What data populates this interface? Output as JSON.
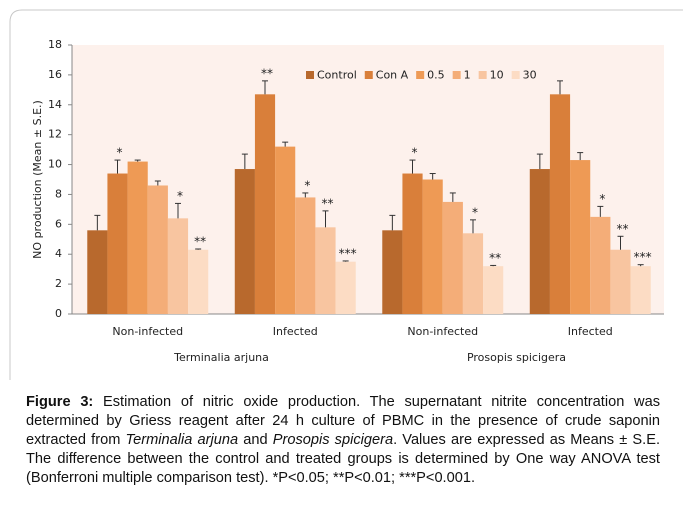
{
  "chart_data": {
    "type": "bar",
    "ylabel": "NO production  (Mean ± S.E.)",
    "categories": [
      "Non-infected",
      "Infected",
      "Non-infected",
      "Infected"
    ],
    "category_groups": [
      {
        "name": "Terminalia arjuna",
        "span": [
          0,
          1
        ]
      },
      {
        "name": "Prosopis spicigera",
        "span": [
          2,
          3
        ]
      }
    ],
    "ylim": [
      0,
      18
    ],
    "yticks": [
      0,
      2,
      4,
      6,
      8,
      10,
      12,
      14,
      16,
      18
    ],
    "grid": false,
    "legend": "top-right",
    "background": "#fdf1ec",
    "series": [
      {
        "name": "Control",
        "color": "#b8692d",
        "values": [
          5.6,
          9.7,
          5.6,
          9.7
        ],
        "errors": [
          1.0,
          1.0,
          1.0,
          1.0
        ],
        "labels": [
          null,
          null,
          null,
          null
        ]
      },
      {
        "name": "Con A",
        "color": "#d97f3a",
        "values": [
          9.4,
          14.7,
          9.4,
          14.7
        ],
        "errors": [
          0.9,
          0.9,
          0.9,
          0.9
        ],
        "labels": [
          "*",
          "**",
          "*",
          null
        ]
      },
      {
        "name": "0.5",
        "color": "#ee9a55",
        "values": [
          10.2,
          11.2,
          9.0,
          10.3
        ],
        "errors": [
          0.1,
          0.3,
          0.4,
          0.5
        ],
        "labels": [
          null,
          null,
          null,
          null
        ]
      },
      {
        "name": "1",
        "color": "#f4ad78",
        "values": [
          8.6,
          7.8,
          7.5,
          6.5
        ],
        "errors": [
          0.3,
          0.3,
          0.6,
          0.7
        ],
        "labels": [
          null,
          "*",
          null,
          "*"
        ]
      },
      {
        "name": "10",
        "color": "#f8c5a0",
        "values": [
          6.4,
          5.8,
          5.4,
          4.3
        ],
        "errors": [
          1.0,
          1.1,
          0.9,
          0.9
        ],
        "labels": [
          "*",
          "**",
          "*",
          "**"
        ]
      },
      {
        "name": "30",
        "color": "#fcdcc4",
        "values": [
          4.3,
          3.5,
          3.2,
          3.2
        ],
        "errors": [
          0.05,
          0.05,
          0.05,
          0.1
        ],
        "labels": [
          "**",
          "***",
          "**",
          "***"
        ]
      }
    ]
  },
  "caption": {
    "label": "Figure 3:",
    "parts": [
      " Estimation of nitric oxide production. The supernatant nitrite concentration was determined by Griess reagent after 24 h culture of PBMC in the presence of crude saponin extracted from ",
      "Terminalia arjuna",
      " and ",
      "Prosopis spicigera",
      ". Values are expressed as Means ± S.E. The difference between the control and treated groups is determined by One way ANOVA test (Bonferroni multiple comparison test). *P<0.05; **P<0.01; ***P<0.001."
    ]
  }
}
